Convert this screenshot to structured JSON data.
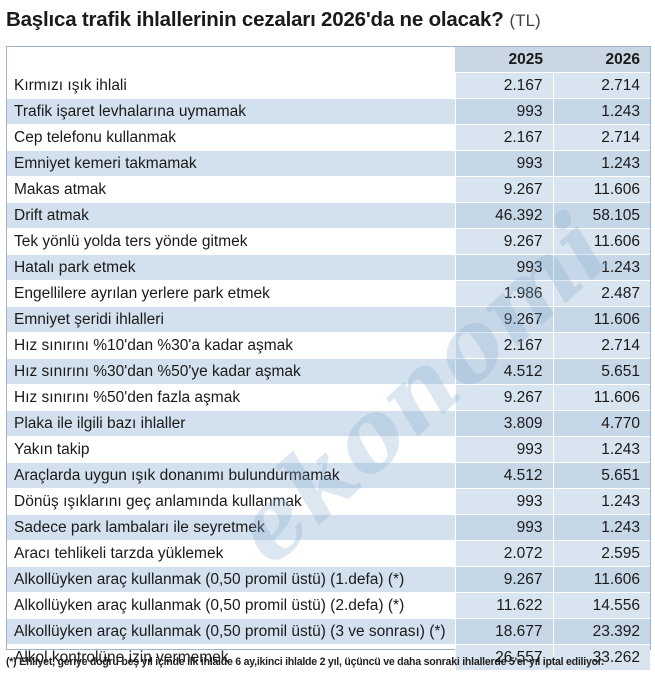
{
  "header": {
    "title": "Başlıca trafik ihlallerinin cezaları 2026'da ne olacak?",
    "unit": "(TL)"
  },
  "table": {
    "columns": [
      "2025",
      "2026"
    ],
    "rows": [
      {
        "label": "Kırmızı ışık ihlali",
        "y2025": "2.167",
        "y2026": "2.714"
      },
      {
        "label": "Trafik işaret levhalarına uymamak",
        "y2025": "993",
        "y2026": "1.243"
      },
      {
        "label": "Cep telefonu kullanmak",
        "y2025": "2.167",
        "y2026": "2.714"
      },
      {
        "label": "Emniyet kemeri takmamak",
        "y2025": "993",
        "y2026": "1.243"
      },
      {
        "label": "Makas atmak",
        "y2025": "9.267",
        "y2026": "11.606"
      },
      {
        "label": "Drift atmak",
        "y2025": "46.392",
        "y2026": "58.105"
      },
      {
        "label": "Tek yönlü yolda ters yönde gitmek",
        "y2025": "9.267",
        "y2026": "11.606"
      },
      {
        "label": "Hatalı park etmek",
        "y2025": "993",
        "y2026": "1.243"
      },
      {
        "label": "Engellilere ayrılan yerlere park etmek",
        "y2025": "1.986",
        "y2026": "2.487"
      },
      {
        "label": "Emniyet şeridi ihlalleri",
        "y2025": "9.267",
        "y2026": "11.606"
      },
      {
        "label": "Hız sınırını %10'dan %30'a kadar aşmak",
        "y2025": "2.167",
        "y2026": "2.714"
      },
      {
        "label": "Hız sınırını %30'dan %50'ye kadar aşmak",
        "y2025": "4.512",
        "y2026": "5.651"
      },
      {
        "label": "Hız sınırını %50'den fazla aşmak",
        "y2025": "9.267",
        "y2026": "11.606"
      },
      {
        "label": "Plaka ile ilgili bazı ihlaller",
        "y2025": "3.809",
        "y2026": "4.770"
      },
      {
        "label": "Yakın takip",
        "y2025": "993",
        "y2026": "1.243"
      },
      {
        "label": "Araçlarda uygun ışık donanımı bulundurmamak",
        "y2025": "4.512",
        "y2026": "5.651"
      },
      {
        "label": "Dönüş ışıklarını geç anlamında kullanmak",
        "y2025": "993",
        "y2026": "1.243"
      },
      {
        "label": "Sadece park lambaları ile seyretmek",
        "y2025": "993",
        "y2026": "1.243"
      },
      {
        "label": "Aracı tehlikeli tarzda yüklemek",
        "y2025": "2.072",
        "y2026": "2.595"
      },
      {
        "label": "Alkollüyken araç kullanmak (0,50 promil üstü) (1.defa) (*)",
        "y2025": "9.267",
        "y2026": "11.606"
      },
      {
        "label": "Alkollüyken araç kullanmak (0,50 promil üstü) (2.defa) (*)",
        "y2025": "11.622",
        "y2026": "14.556"
      },
      {
        "label": "Alkollüyken araç kullanmak (0,50 promil üstü) (3 ve sonrası) (*)",
        "y2025": "18.677",
        "y2026": "23.392"
      },
      {
        "label": "Alkol kontrolüne izin vermemek",
        "y2025": "26.557",
        "y2026": "33.262"
      }
    ]
  },
  "footnote": "(*) Ehliyet, geriye doğru beş yıl içinde ilk ihlalde 6 ay,ikinci ihlalde 2 yıl, üçüncü ve daha sonraki ihlallerde 5'er yıl iptal ediliyor.",
  "watermark": "ekonomi"
}
